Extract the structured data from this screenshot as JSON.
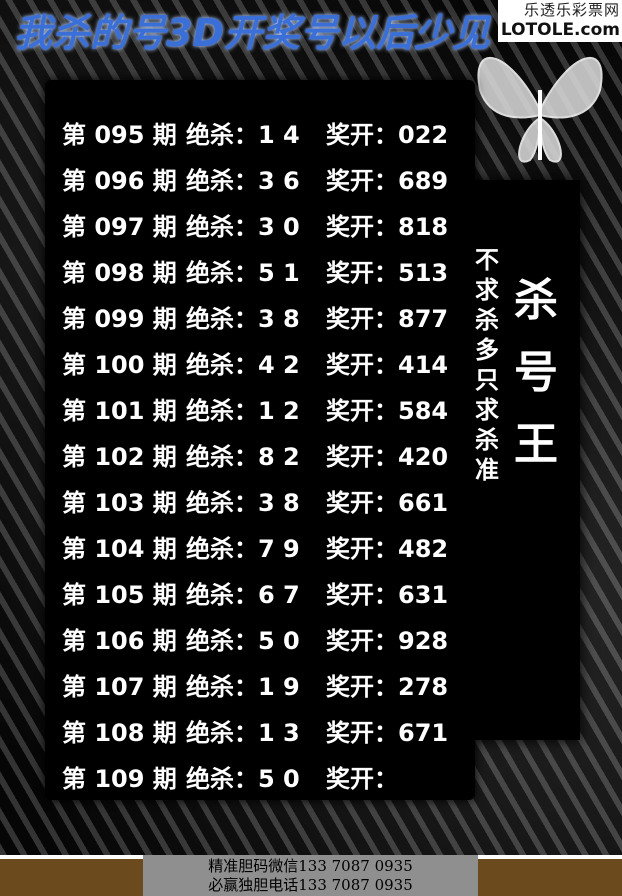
{
  "header": {
    "title": "我杀的号3D开奖号以后少见",
    "watermark_cn": "乐透乐彩票网",
    "watermark_en": "LOTOLE.com"
  },
  "rows": [
    {
      "period": "第 095 期",
      "kill": "绝杀：1 4",
      "draw": "奖开：022"
    },
    {
      "period": "第 096 期",
      "kill": "绝杀：3 6",
      "draw": "奖开：689"
    },
    {
      "period": "第 097 期",
      "kill": "绝杀：3 0",
      "draw": "奖开：818"
    },
    {
      "period": "第 098 期",
      "kill": "绝杀：5 1",
      "draw": "奖开：513"
    },
    {
      "period": "第 099 期",
      "kill": "绝杀：3 8",
      "draw": "奖开：877"
    },
    {
      "period": "第 100 期",
      "kill": "绝杀：4 2",
      "draw": "奖开：414"
    },
    {
      "period": "第 101 期",
      "kill": "绝杀：1 2",
      "draw": "奖开：584"
    },
    {
      "period": "第 102 期",
      "kill": "绝杀：8 2",
      "draw": "奖开：420"
    },
    {
      "period": "第 103 期",
      "kill": "绝杀：3 8",
      "draw": "奖开：661"
    },
    {
      "period": "第 104 期",
      "kill": "绝杀：7 9",
      "draw": "奖开：482"
    },
    {
      "period": "第 105 期",
      "kill": "绝杀：6 7",
      "draw": "奖开：631"
    },
    {
      "period": "第 106 期",
      "kill": "绝杀：5 0",
      "draw": "奖开：928"
    },
    {
      "period": "第 107 期",
      "kill": "绝杀：1 9",
      "draw": "奖开：278"
    },
    {
      "period": "第 108 期",
      "kill": "绝杀：1 3",
      "draw": "奖开：671"
    },
    {
      "period": "第 109 期",
      "kill": "绝杀：5 0",
      "draw": "奖开："
    }
  ],
  "side": {
    "slogan": "不求杀多只求杀准",
    "king": "杀号王"
  },
  "footer": {
    "line1": "精准胆码微信133 7087 0935",
    "line2": "必赢独胆电话133 7087 0935"
  }
}
